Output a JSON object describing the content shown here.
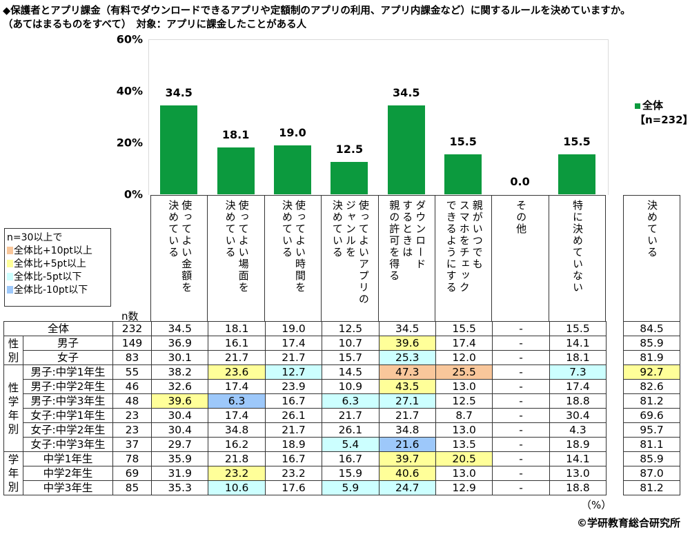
{
  "title": {
    "line1": "◆保護者とアプリ課金（有料でダウンロードできるアプリや定額制のアプリの利用、アプリ内課金など）に関するルールを決めていますか。",
    "line2": "（あてはまるものをすべて）　対象：アプリに課金したことがある人"
  },
  "chart_data": {
    "type": "bar",
    "categories": [
      "使ってよい金額を\n決めている",
      "使ってよい場面を\n決めている",
      "使ってよい時間を\n決めている",
      "使ってよいアプリの\nジャンルを\n決めている",
      "ダウンロード\nするときは\n親の許可を得る",
      "親がいつでも\nスマホをチェック\nできるようにする",
      "その他",
      "特に決めていない"
    ],
    "series": [
      {
        "name": "全体【n=232】",
        "values": [
          34.5,
          18.1,
          19.0,
          12.5,
          34.5,
          15.5,
          0.0,
          15.5
        ]
      }
    ],
    "value_labels": [
      "34.5",
      "18.1",
      "19.0",
      "12.5",
      "34.5",
      "15.5",
      "0.0",
      "15.5"
    ],
    "ylim": [
      0,
      60
    ],
    "yticks": [
      "0%",
      "20%",
      "40%",
      "60%"
    ],
    "legend": "top-right",
    "grid": false,
    "bar_color": "#0c9a3e"
  },
  "extra_column": "決めている",
  "highlight_legend": {
    "title": "n=30以上で",
    "items": [
      {
        "label": "全体比+10pt以上",
        "color": "#f9c79b"
      },
      {
        "label": "全体比+5pt以上",
        "color": "#ffff99"
      },
      {
        "label": "全体比-5pt以下",
        "color": "#ccffff"
      },
      {
        "label": "全体比-10pt以下",
        "color": "#9dc8fa"
      }
    ]
  },
  "n_header": "n数",
  "groups": [
    {
      "label": "性\n別",
      "rows": 2
    },
    {
      "label": "性\n学\n年\n別",
      "rows": 6
    },
    {
      "label": "学\n年\n別",
      "rows": 3
    }
  ],
  "rows": [
    {
      "label": "全体",
      "n": "232",
      "values": [
        "34.5",
        "18.1",
        "19.0",
        "12.5",
        "34.5",
        "15.5",
        "-",
        "15.5"
      ],
      "total": "84.5",
      "hl": [
        "",
        "",
        "",
        "",
        "",
        "",
        "",
        "",
        ""
      ]
    },
    {
      "label": "男子",
      "n": "149",
      "values": [
        "36.9",
        "16.1",
        "17.4",
        "10.7",
        "39.6",
        "17.4",
        "-",
        "14.1"
      ],
      "total": "85.9",
      "hl": [
        "",
        "",
        "",
        "",
        "p5",
        "",
        "",
        "",
        ""
      ]
    },
    {
      "label": "女子",
      "n": "83",
      "values": [
        "30.1",
        "21.7",
        "21.7",
        "15.7",
        "25.3",
        "12.0",
        "-",
        "18.1"
      ],
      "total": "81.9",
      "hl": [
        "",
        "",
        "",
        "",
        "m5",
        "",
        "",
        "",
        ""
      ]
    },
    {
      "label": "男子:中学1年生",
      "n": "55",
      "values": [
        "38.2",
        "23.6",
        "12.7",
        "14.5",
        "47.3",
        "25.5",
        "-",
        "7.3"
      ],
      "total": "92.7",
      "hl": [
        "",
        "p5",
        "m5",
        "",
        "p10",
        "p10",
        "",
        "m5",
        "p5"
      ]
    },
    {
      "label": "男子:中学2年生",
      "n": "46",
      "values": [
        "32.6",
        "17.4",
        "23.9",
        "10.9",
        "43.5",
        "13.0",
        "-",
        "17.4"
      ],
      "total": "82.6",
      "hl": [
        "",
        "",
        "",
        "",
        "p5",
        "",
        "",
        "",
        ""
      ]
    },
    {
      "label": "男子:中学3年生",
      "n": "48",
      "values": [
        "39.6",
        "6.3",
        "16.7",
        "6.3",
        "27.1",
        "12.5",
        "-",
        "18.8"
      ],
      "total": "81.2",
      "hl": [
        "p5",
        "m10",
        "",
        "m5",
        "m5",
        "",
        "",
        "",
        ""
      ]
    },
    {
      "label": "女子:中学1年生",
      "n": "23",
      "values": [
        "30.4",
        "17.4",
        "26.1",
        "21.7",
        "21.7",
        "8.7",
        "-",
        "30.4"
      ],
      "total": "69.6",
      "hl": [
        "",
        "",
        "",
        "",
        "",
        "",
        "",
        "",
        ""
      ]
    },
    {
      "label": "女子:中学2年生",
      "n": "23",
      "values": [
        "30.4",
        "34.8",
        "21.7",
        "26.1",
        "34.8",
        "13.0",
        "-",
        "4.3"
      ],
      "total": "95.7",
      "hl": [
        "",
        "",
        "",
        "",
        "",
        "",
        "",
        "",
        ""
      ]
    },
    {
      "label": "女子:中学3年生",
      "n": "37",
      "values": [
        "29.7",
        "16.2",
        "18.9",
        "5.4",
        "21.6",
        "13.5",
        "-",
        "18.9"
      ],
      "total": "81.1",
      "hl": [
        "",
        "",
        "",
        "m5",
        "m10",
        "",
        "",
        "",
        ""
      ]
    },
    {
      "label": "中学1年生",
      "n": "78",
      "values": [
        "35.9",
        "21.8",
        "16.7",
        "16.7",
        "39.7",
        "20.5",
        "-",
        "14.1"
      ],
      "total": "85.9",
      "hl": [
        "",
        "",
        "",
        "",
        "p5",
        "p5",
        "",
        "",
        ""
      ]
    },
    {
      "label": "中学2年生",
      "n": "69",
      "values": [
        "31.9",
        "23.2",
        "23.2",
        "15.9",
        "40.6",
        "13.0",
        "-",
        "13.0"
      ],
      "total": "87.0",
      "hl": [
        "",
        "p5",
        "",
        "",
        "p5",
        "",
        "",
        "",
        ""
      ]
    },
    {
      "label": "中学3年生",
      "n": "85",
      "values": [
        "35.3",
        "10.6",
        "17.6",
        "5.9",
        "24.7",
        "12.9",
        "-",
        "18.8"
      ],
      "total": "81.2",
      "hl": [
        "",
        "m5",
        "",
        "m5",
        "m5",
        "",
        "",
        "",
        ""
      ]
    }
  ],
  "footer": {
    "unit": "（%）",
    "copyright": "©学研教育総合研究所"
  }
}
